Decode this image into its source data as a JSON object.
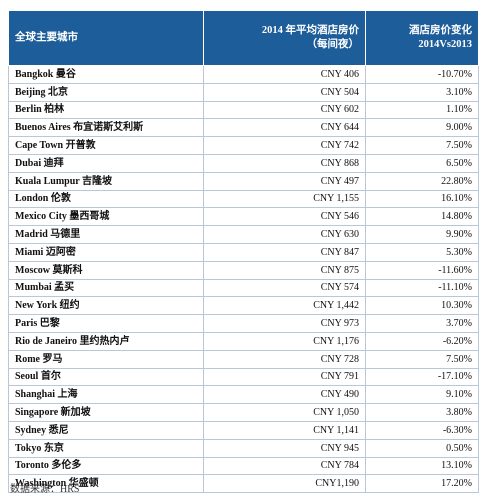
{
  "table": {
    "headers": {
      "city": "全球主要城市",
      "price_line1": "2014 年平均酒店房价",
      "price_line2": "（每间夜）",
      "change_line1": "酒店房价变化",
      "change_line2": "2014Vs2013"
    },
    "rows": [
      {
        "city": "Bangkok 曼谷",
        "price": "CNY 406",
        "change": "-10.70%"
      },
      {
        "city": "Beijing 北京",
        "price": "CNY 504",
        "change": "3.10%"
      },
      {
        "city": "Berlin 柏林",
        "price": "CNY 602",
        "change": "1.10%"
      },
      {
        "city": "Buenos Aires 布宜诺斯艾利斯",
        "price": "CNY 644",
        "change": "9.00%"
      },
      {
        "city": "Cape Town 开普敦",
        "price": "CNY 742",
        "change": "7.50%"
      },
      {
        "city": "Dubai 迪拜",
        "price": "CNY 868",
        "change": "6.50%"
      },
      {
        "city": "Kuala Lumpur 吉隆坡",
        "price": "CNY 497",
        "change": "22.80%"
      },
      {
        "city": "London 伦敦",
        "price": "CNY 1,155",
        "change": "16.10%"
      },
      {
        "city": "Mexico City 墨西哥城",
        "price": "CNY 546",
        "change": "14.80%"
      },
      {
        "city": "Madrid 马德里",
        "price": "CNY 630",
        "change": "9.90%"
      },
      {
        "city": "Miami 迈阿密",
        "price": "CNY 847",
        "change": "5.30%"
      },
      {
        "city": "Moscow 莫斯科",
        "price": "CNY 875",
        "change": "-11.60%"
      },
      {
        "city": "Mumbai 孟买",
        "price": "CNY 574",
        "change": "-11.10%"
      },
      {
        "city": "New York 纽约",
        "price": "CNY 1,442",
        "change": "10.30%"
      },
      {
        "city": "Paris 巴黎",
        "price": "CNY 973",
        "change": "3.70%"
      },
      {
        "city": "Rio de Janeiro 里约热内卢",
        "price": "CNY 1,176",
        "change": "-6.20%"
      },
      {
        "city": "Rome 罗马",
        "price": "CNY 728",
        "change": "7.50%"
      },
      {
        "city": "Seoul 首尔",
        "price": "CNY 791",
        "change": "-17.10%"
      },
      {
        "city": "Shanghai 上海",
        "price": "CNY 490",
        "change": "9.10%"
      },
      {
        "city": "Singapore 新加坡",
        "price": "CNY 1,050",
        "change": "3.80%"
      },
      {
        "city": "Sydney 悉尼",
        "price": "CNY 1,141",
        "change": "-6.30%"
      },
      {
        "city": "Tokyo 东京",
        "price": "CNY 945",
        "change": "0.50%"
      },
      {
        "city": "Toronto 多伦多",
        "price": "CNY 784",
        "change": "13.10%"
      },
      {
        "city": "Washington 华盛顿",
        "price": "CNY1,190",
        "change": "17.20%"
      }
    ]
  },
  "source": "数据来源：HRS",
  "colors": {
    "header_bg": "#1d5d9a",
    "header_text": "#ffffff",
    "grid": "#b9c7d8"
  }
}
